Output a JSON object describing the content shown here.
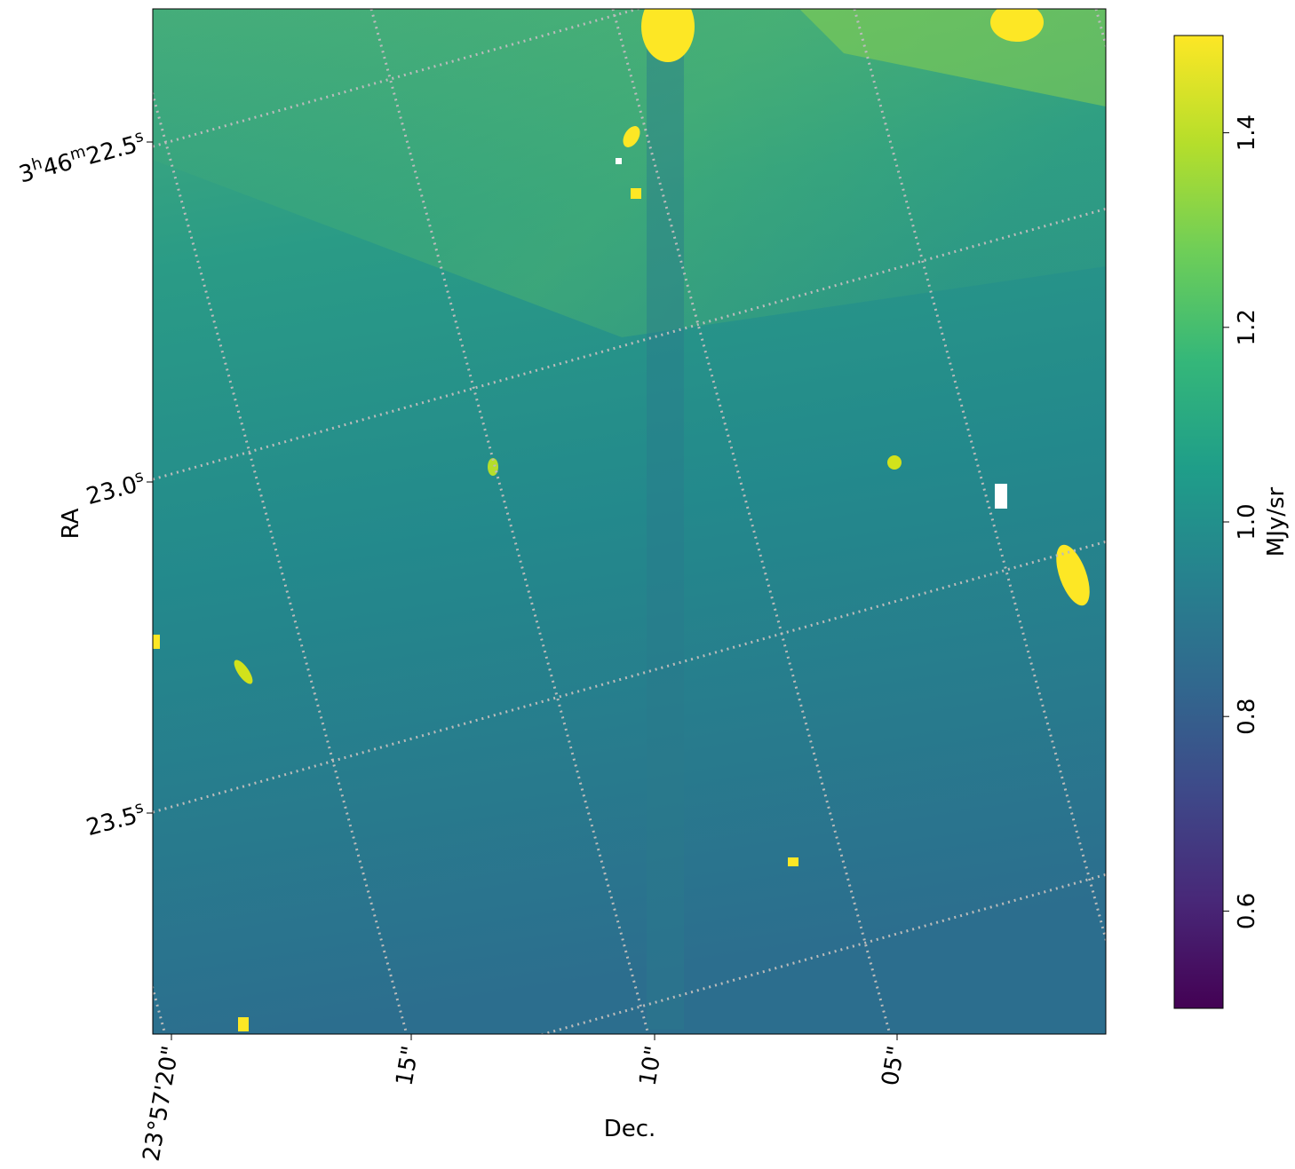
{
  "chart_data": {
    "type": "image",
    "x_label": "Dec.",
    "y_label": "RA",
    "x_tick_labels": [
      "23°57'20\"",
      "15\"",
      "10\"",
      "05\""
    ],
    "y_tick_labels": [
      [
        "3",
        "h",
        "46",
        "m",
        "22.5",
        "s"
      ],
      [
        "23.0",
        "s"
      ],
      [
        "23.5",
        "s"
      ]
    ],
    "colorbar": {
      "label": "MJy/sr",
      "lim": [
        0.5,
        1.5
      ],
      "ticks": [
        0.6,
        0.8,
        {
          "value": 1,
          "label": "1.0"
        },
        1.2,
        1.4
      ],
      "colormap": [
        "#440154",
        "#482878",
        "#3e4989",
        "#31688e",
        "#26828e",
        "#1f9e89",
        "#35b779",
        "#6ece58",
        "#b5de2b",
        "#fde725"
      ]
    },
    "grid": true
  }
}
